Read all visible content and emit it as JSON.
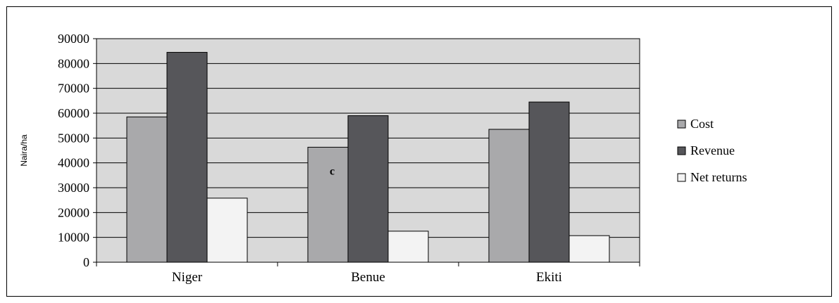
{
  "chart_data": {
    "type": "bar",
    "title": "",
    "xlabel": "",
    "ylabel": "Naira/ha",
    "categories": [
      "Niger",
      "Benue",
      "Ekiti"
    ],
    "series": [
      {
        "name": "Cost",
        "values": [
          58500,
          46300,
          53500
        ],
        "color": "#a9a9ab"
      },
      {
        "name": "Revenue",
        "values": [
          84500,
          59000,
          64500
        ],
        "color": "#56565a"
      },
      {
        "name": "Net returns",
        "values": [
          25800,
          12500,
          10700
        ],
        "color": "#f3f3f3"
      }
    ],
    "ylim": [
      0,
      90000
    ],
    "yticks": [
      "0",
      "10000",
      "20000",
      "30000",
      "40000",
      "50000",
      "60000",
      "70000",
      "80000",
      "90000"
    ],
    "grid": true,
    "plot_background": "#d9d9d9",
    "legend_position": "right",
    "annotations": [
      {
        "text": "c",
        "category": "Benue",
        "series": "Cost",
        "value": 37000
      }
    ]
  }
}
